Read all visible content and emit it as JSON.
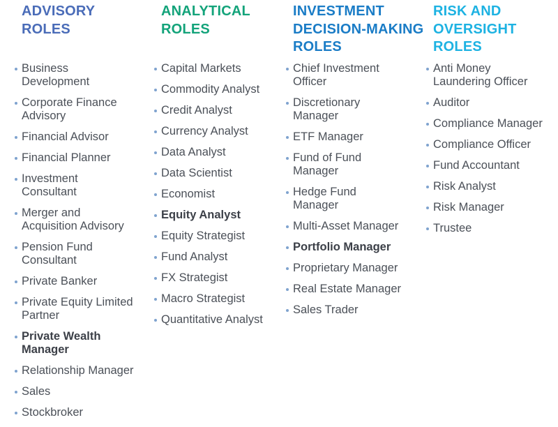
{
  "columns": [
    {
      "heading": "ADVISORY\nROLES",
      "color": "#4a6cb8",
      "items": [
        {
          "label": "Business\nDevelopment"
        },
        {
          "label": "Corporate Finance\nAdvisory"
        },
        {
          "label": "Financial Advisor"
        },
        {
          "label": "Financial Planner"
        },
        {
          "label": "Investment\nConsultant"
        },
        {
          "label": "Merger and\nAcquisition Advisory"
        },
        {
          "label": "Pension Fund\nConsultant"
        },
        {
          "label": "Private Banker"
        },
        {
          "label": "Private Equity Limited\nPartner"
        },
        {
          "label": "Private Wealth\nManager",
          "bold": true
        },
        {
          "label": "Relationship Manager"
        },
        {
          "label": "Sales"
        },
        {
          "label": "Stockbroker"
        }
      ]
    },
    {
      "heading": "ANALYTICAL\nROLES",
      "color": "#13a37a",
      "items": [
        {
          "label": "Capital Markets"
        },
        {
          "label": "Commodity Analyst"
        },
        {
          "label": "Credit Analyst"
        },
        {
          "label": "Currency Analyst"
        },
        {
          "label": "Data Analyst"
        },
        {
          "label": "Data Scientist"
        },
        {
          "label": "Economist"
        },
        {
          "label": "Equity Analyst",
          "bold": true
        },
        {
          "label": "Equity Strategist"
        },
        {
          "label": "Fund Analyst"
        },
        {
          "label": "FX Strategist"
        },
        {
          "label": "Macro Strategist"
        },
        {
          "label": "Quantitative Analyst"
        }
      ]
    },
    {
      "heading": "INVESTMENT\nDECISION-MAKING\nROLES",
      "color": "#1a7cc6",
      "items": [
        {
          "label": "Chief Investment\nOfficer"
        },
        {
          "label": "Discretionary\nManager"
        },
        {
          "label": "ETF Manager"
        },
        {
          "label": "Fund of Fund\nManager"
        },
        {
          "label": "Hedge Fund\nManager"
        },
        {
          "label": "Multi-Asset Manager"
        },
        {
          "label": "Portfolio Manager",
          "bold": true
        },
        {
          "label": "Proprietary Manager"
        },
        {
          "label": "Real Estate Manager"
        },
        {
          "label": "Sales Trader"
        }
      ]
    },
    {
      "heading": "RISK AND\nOVERSIGHT\nROLES",
      "color": "#1db2e2",
      "items": [
        {
          "label": "Anti Money\nLaundering Officer"
        },
        {
          "label": "Auditor"
        },
        {
          "label": "Compliance Manager"
        },
        {
          "label": "Compliance Officer"
        },
        {
          "label": "Fund Accountant"
        },
        {
          "label": "Risk Analyst"
        },
        {
          "label": "Risk Manager"
        },
        {
          "label": "Trustee"
        }
      ]
    }
  ],
  "bullet_color": "#7fa3cf"
}
